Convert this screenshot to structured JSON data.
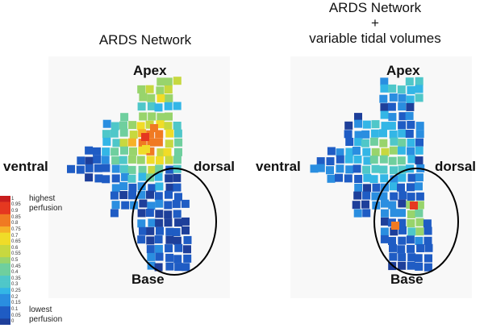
{
  "panels": [
    {
      "title_lines": [
        "ARDS Network"
      ],
      "labels": {
        "apex": "Apex",
        "base": "Base",
        "ventral": "ventral",
        "dorsal": "dorsal"
      }
    },
    {
      "title_lines": [
        "ARDS Network",
        "+",
        "variable tidal volumes"
      ],
      "labels": {
        "apex": "Apex",
        "base": "Base",
        "ventral": "ventral",
        "dorsal": "dorsal"
      }
    }
  ],
  "colorbar": {
    "ticks": [
      "1",
      "0.95",
      "0.9",
      "0.85",
      "0.8",
      "0.75",
      "0.7",
      "0.65",
      "0.6",
      "0.55",
      "0.5",
      "0.45",
      "0.4",
      "0.35",
      "0.3",
      "0.25",
      "0.2",
      "0.15",
      "0.1",
      "0.05",
      "0"
    ],
    "high_label": [
      "highest",
      "perfusion"
    ],
    "low_label": [
      "lowest",
      "perfusion"
    ],
    "colors": [
      "#1e3f9a",
      "#1f5cc4",
      "#2a8ee0",
      "#33b6e6",
      "#4fc7c9",
      "#6fcf9e",
      "#98d46c",
      "#c7d83f",
      "#f0dc28",
      "#f6b127",
      "#f07a22",
      "#e53820",
      "#c81e1e"
    ]
  }
}
